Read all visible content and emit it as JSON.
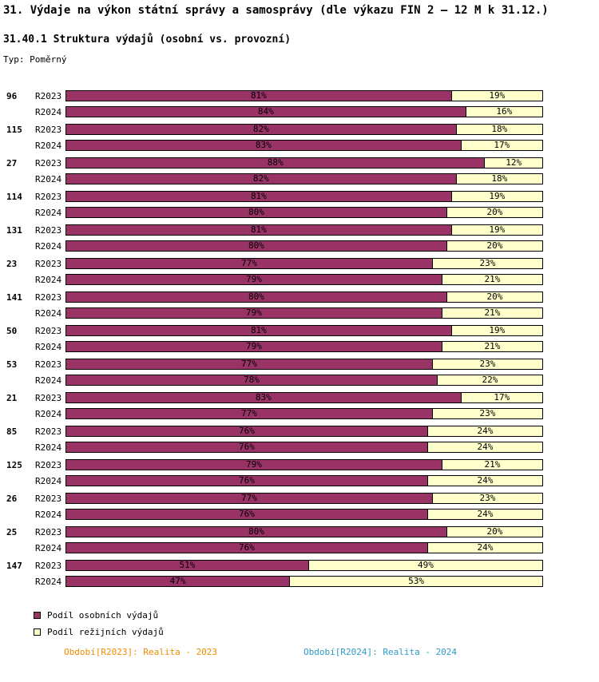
{
  "header": {
    "title": "31. Výdaje na výkon státní správy a samosprávy (dle výkazu FIN 2 – 12 M k 31.12.)",
    "subtitle": "31.40.1 Struktura výdajů (osobní vs. provozní)",
    "type_label": "Typ: Poměrný"
  },
  "chart_data": {
    "type": "bar",
    "orientation": "horizontal",
    "stacked_percent": true,
    "xlim": [
      0,
      100
    ],
    "unit": "%",
    "grid": false,
    "legend_position": "bottom-left",
    "series_labels": [
      "R2023",
      "R2024"
    ],
    "colors": {
      "personal": "#993366",
      "overhead": "#FFFFCC",
      "border": "#000000"
    },
    "legend": [
      {
        "key": "personal",
        "label": "Podíl osobních výdajů",
        "color": "#993366"
      },
      {
        "key": "overhead",
        "label": "Podíl režijních výdajů",
        "color": "#FFFFCC"
      }
    ],
    "groups": [
      {
        "category": "96",
        "rows": [
          {
            "label": "R2023",
            "personal": 81,
            "overhead": 19
          },
          {
            "label": "R2024",
            "personal": 84,
            "overhead": 16
          }
        ]
      },
      {
        "category": "115",
        "rows": [
          {
            "label": "R2023",
            "personal": 82,
            "overhead": 18
          },
          {
            "label": "R2024",
            "personal": 83,
            "overhead": 17
          }
        ]
      },
      {
        "category": "27",
        "rows": [
          {
            "label": "R2023",
            "personal": 88,
            "overhead": 12
          },
          {
            "label": "R2024",
            "personal": 82,
            "overhead": 18
          }
        ]
      },
      {
        "category": "114",
        "rows": [
          {
            "label": "R2023",
            "personal": 81,
            "overhead": 19
          },
          {
            "label": "R2024",
            "personal": 80,
            "overhead": 20
          }
        ]
      },
      {
        "category": "131",
        "rows": [
          {
            "label": "R2023",
            "personal": 81,
            "overhead": 19
          },
          {
            "label": "R2024",
            "personal": 80,
            "overhead": 20
          }
        ]
      },
      {
        "category": "23",
        "rows": [
          {
            "label": "R2023",
            "personal": 77,
            "overhead": 23
          },
          {
            "label": "R2024",
            "personal": 79,
            "overhead": 21
          }
        ]
      },
      {
        "category": "141",
        "rows": [
          {
            "label": "R2023",
            "personal": 80,
            "overhead": 20
          },
          {
            "label": "R2024",
            "personal": 79,
            "overhead": 21
          }
        ]
      },
      {
        "category": "50",
        "rows": [
          {
            "label": "R2023",
            "personal": 81,
            "overhead": 19
          },
          {
            "label": "R2024",
            "personal": 79,
            "overhead": 21
          }
        ]
      },
      {
        "category": "53",
        "rows": [
          {
            "label": "R2023",
            "personal": 77,
            "overhead": 23
          },
          {
            "label": "R2024",
            "personal": 78,
            "overhead": 22
          }
        ]
      },
      {
        "category": "21",
        "rows": [
          {
            "label": "R2023",
            "personal": 83,
            "overhead": 17
          },
          {
            "label": "R2024",
            "personal": 77,
            "overhead": 23
          }
        ]
      },
      {
        "category": "85",
        "rows": [
          {
            "label": "R2023",
            "personal": 76,
            "overhead": 24
          },
          {
            "label": "R2024",
            "personal": 76,
            "overhead": 24
          }
        ]
      },
      {
        "category": "125",
        "rows": [
          {
            "label": "R2023",
            "personal": 79,
            "overhead": 21
          },
          {
            "label": "R2024",
            "personal": 76,
            "overhead": 24
          }
        ]
      },
      {
        "category": "26",
        "rows": [
          {
            "label": "R2023",
            "personal": 77,
            "overhead": 23
          },
          {
            "label": "R2024",
            "personal": 76,
            "overhead": 24
          }
        ]
      },
      {
        "category": "25",
        "rows": [
          {
            "label": "R2023",
            "personal": 80,
            "overhead": 20
          },
          {
            "label": "R2024",
            "personal": 76,
            "overhead": 24
          }
        ]
      },
      {
        "category": "147",
        "rows": [
          {
            "label": "R2023",
            "personal": 51,
            "overhead": 49
          },
          {
            "label": "R2024",
            "personal": 47,
            "overhead": 53
          }
        ]
      }
    ]
  },
  "footer": {
    "left": "Období[R2023]: Realita - 2023",
    "right": "Období[R2024]: Realita - 2024",
    "left_color": "#F08C00",
    "right_color": "#2E9BC6"
  }
}
